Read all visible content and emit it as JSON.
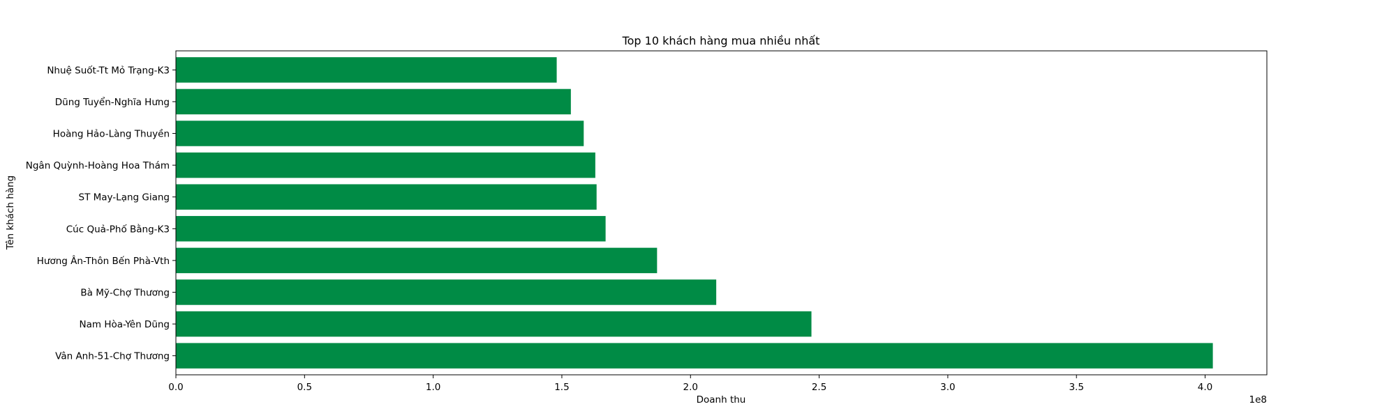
{
  "chart_data": {
    "type": "bar",
    "orientation": "horizontal",
    "title": "Top 10 khách hàng mua nhiều nhất",
    "xlabel": "Doanh thu",
    "ylabel": "Tên khách hàng",
    "x_offset_text": "1e8",
    "xlim": [
      0,
      4.24
    ],
    "x_ticks": [
      0.0,
      0.5,
      1.0,
      1.5,
      2.0,
      2.5,
      3.0,
      3.5,
      4.0
    ],
    "x_tick_labels": [
      "0.0",
      "0.5",
      "1.0",
      "1.5",
      "2.0",
      "2.5",
      "3.0",
      "3.5",
      "4.0"
    ],
    "categories": [
      "Vân Anh-51-Chợ Thương",
      "Nam Hòa-Yên Dũng",
      "Bà Mỹ-Chợ Thương",
      "Hương Ân-Thôn Bến Phà-Vth",
      "Cúc Quả-Phố Bằng-K3",
      "ST May-Lạng Giang",
      "Ngân Quỳnh-Hoàng Hoa Thám",
      "Hoàng Hảo-Làng Thuyền",
      "Dũng Tuyển-Nghĩa Hưng",
      "Nhuệ Suốt-Tt Mỏ Trạng-K3"
    ],
    "values": [
      4.03,
      2.47,
      2.1,
      1.87,
      1.67,
      1.635,
      1.63,
      1.585,
      1.535,
      1.48
    ],
    "bar_color": "#008B45",
    "grid": false,
    "legend": "none"
  }
}
